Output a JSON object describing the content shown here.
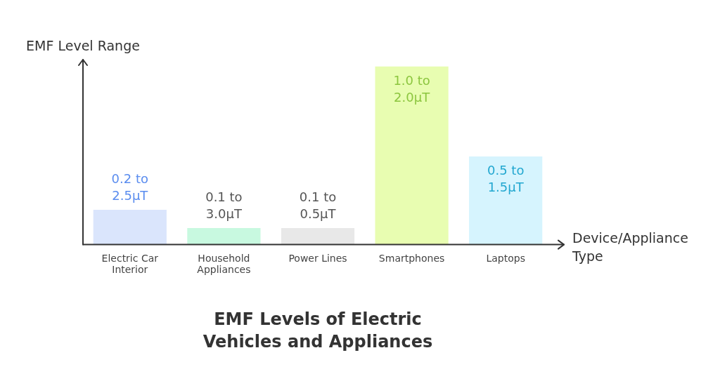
{
  "chart_data": {
    "type": "bar",
    "title": "EMF Levels of Electric Vehicles and Appliances",
    "x_label": "Device/Appliance Type",
    "y_label": "EMF Level Range",
    "categories": [
      "Electric Car Interior",
      "Household Appliances",
      "Power Lines",
      "Smartphones",
      "Laptops"
    ],
    "values": [
      19,
      9,
      9,
      97,
      48
    ],
    "colors": [
      "#dae5fc",
      "#c8f9e0",
      "#e8e8e8",
      "#e8fdb1",
      "#d6f4fe"
    ],
    "annotations": [
      "0.2 to 2.5μT",
      "0.1 to 3.0μT",
      "0.1 to 0.5μT",
      "1.0 to 2.0μT",
      "0.5 to 1.5μT"
    ],
    "ylim": [
      0,
      100
    ],
    "grid": false,
    "tick_labels": "x"
  }
}
